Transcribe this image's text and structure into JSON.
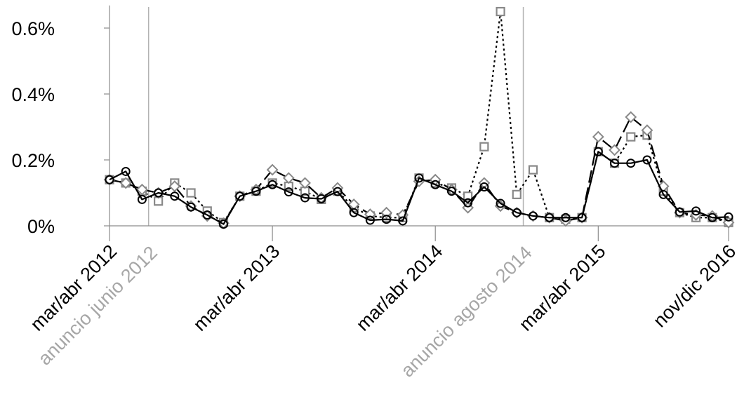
{
  "chart_data": {
    "type": "line",
    "y_tick_labels": [
      "0%",
      "0.2%",
      "0.4%",
      "0.6%"
    ],
    "y_ticks": [
      0,
      0.2,
      0.4,
      0.6
    ],
    "ylim": [
      0,
      0.66
    ],
    "x_period_count": 39,
    "x_tick_labels": [
      {
        "label": "mar/abr 2012",
        "index": 0
      },
      {
        "label": "mar/abr 2013",
        "index": 10
      },
      {
        "label": "mar/abr 2014",
        "index": 20
      },
      {
        "label": "mar/abr 2015",
        "index": 30
      },
      {
        "label": "nov/dic 2016",
        "index": 38
      }
    ],
    "annotations": [
      {
        "label": "anuncio junio 2012",
        "index": 2.4
      },
      {
        "label": "anuncio agosto 2014",
        "index": 25.4
      }
    ],
    "series": [
      {
        "marker": "circle",
        "dash": "solid",
        "color": "#000000",
        "values": [
          0.14,
          0.165,
          0.08,
          0.1,
          0.09,
          0.057,
          0.033,
          0.005,
          0.09,
          0.105,
          0.125,
          0.103,
          0.085,
          0.082,
          0.104,
          0.04,
          0.017,
          0.02,
          0.015,
          0.145,
          0.125,
          0.105,
          0.07,
          0.118,
          0.068,
          0.04,
          0.03,
          0.025,
          0.025,
          0.025,
          0.225,
          0.19,
          0.19,
          0.2,
          0.095,
          0.042,
          0.045,
          0.025,
          0.027
        ]
      },
      {
        "marker": "diamond",
        "dash": "longdash",
        "color": "#888888",
        "values": [
          0.14,
          0.13,
          0.11,
          0.1,
          0.12,
          0.06,
          0.03,
          0.008,
          0.09,
          0.11,
          0.17,
          0.145,
          0.13,
          0.085,
          0.115,
          0.065,
          0.035,
          0.04,
          0.033,
          0.135,
          0.14,
          0.11,
          0.055,
          0.13,
          0.06,
          0.04,
          0.03,
          0.025,
          0.015,
          0.025,
          0.27,
          0.23,
          0.33,
          0.29,
          0.12,
          0.04,
          0.033,
          0.03,
          0.01
        ]
      },
      {
        "marker": "square",
        "dash": "dotted",
        "color": "#888888",
        "values": [
          0.14,
          0.13,
          0.105,
          0.075,
          0.13,
          0.1,
          0.045,
          0.01,
          0.09,
          0.105,
          0.13,
          0.12,
          0.105,
          0.08,
          0.105,
          0.055,
          0.03,
          0.025,
          0.025,
          0.145,
          0.13,
          0.115,
          0.09,
          0.24,
          0.65,
          0.095,
          0.17,
          0.025,
          0.02,
          0.025,
          0.225,
          0.19,
          0.27,
          0.275,
          0.105,
          0.04,
          0.025,
          0.025,
          0.01
        ]
      }
    ]
  }
}
